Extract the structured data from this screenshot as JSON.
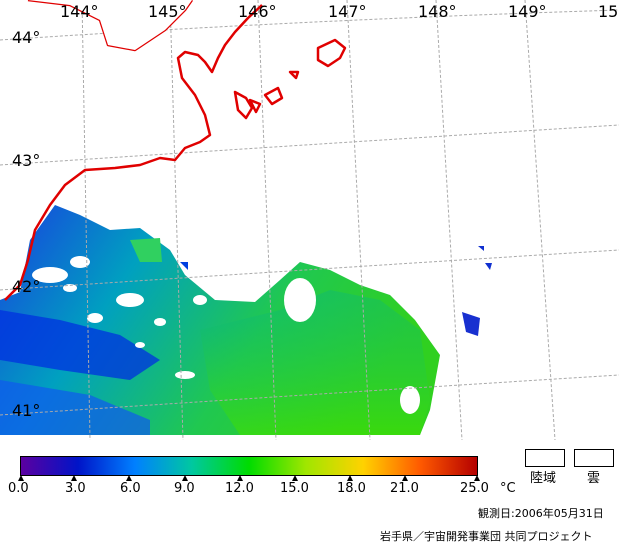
{
  "lon_labels": [
    "144°",
    "145°",
    "146°",
    "147°",
    "148°",
    "149°",
    "15"
  ],
  "lat_labels": [
    "44°",
    "43°",
    "42°",
    "41°"
  ],
  "scale": {
    "ticks": [
      "0.0",
      "3.0",
      "6.0",
      "9.0",
      "12.0",
      "15.0",
      "18.0",
      "21.0",
      "25.0"
    ],
    "unit": "°C",
    "colors": [
      "#5b00a0",
      "#0014c8",
      "#0080ff",
      "#00c8a0",
      "#00dc00",
      "#a0e600",
      "#ffd200",
      "#ff5a00",
      "#b40000"
    ]
  },
  "legend": {
    "land": "陸域",
    "cloud": "雲"
  },
  "observation_date": "観測日:2006年05月31日",
  "credit": "岩手県／宇宙開発事業団 共同プロジェクト"
}
